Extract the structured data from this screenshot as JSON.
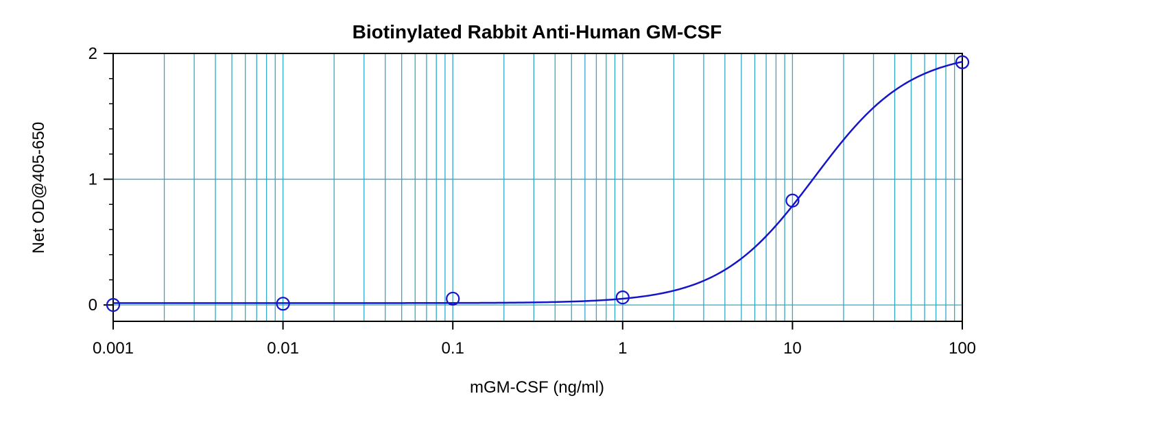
{
  "chart_data": {
    "type": "scatter",
    "title": "Biotinylated Rabbit Anti-Human GM-CSF",
    "xlabel": "mGM-CSF (ng/ml)",
    "ylabel": "Net OD@405-650",
    "x_scale": "log",
    "xlim": [
      0.001,
      100
    ],
    "ylim": [
      -0.13,
      2
    ],
    "x_ticks": [
      0.001,
      0.01,
      0.1,
      1,
      10,
      100
    ],
    "x_tick_labels": [
      "0.001",
      "0.01",
      "0.1",
      "1",
      "10",
      "100"
    ],
    "y_ticks": [
      0,
      1,
      2
    ],
    "y_tick_labels": [
      "0",
      "1",
      "2"
    ],
    "grid": true,
    "legend": "none",
    "series": [
      {
        "points": [
          {
            "x": 0.001,
            "y": 0.0
          },
          {
            "x": 0.01,
            "y": 0.01
          },
          {
            "x": 0.1,
            "y": 0.05
          },
          {
            "x": 1,
            "y": 0.06
          },
          {
            "x": 10,
            "y": 0.83
          },
          {
            "x": 100,
            "y": 1.93
          }
        ],
        "marker": "open-circle",
        "color": "#1414c8"
      }
    ],
    "fit_curve": {
      "model": "4PL",
      "bottom": 0.015,
      "top": 2.02,
      "ec50": 13.5,
      "hill": 1.55,
      "color": "#1414c8"
    },
    "colors": {
      "grid": "#2ea8c8",
      "axes": "#000000"
    }
  }
}
